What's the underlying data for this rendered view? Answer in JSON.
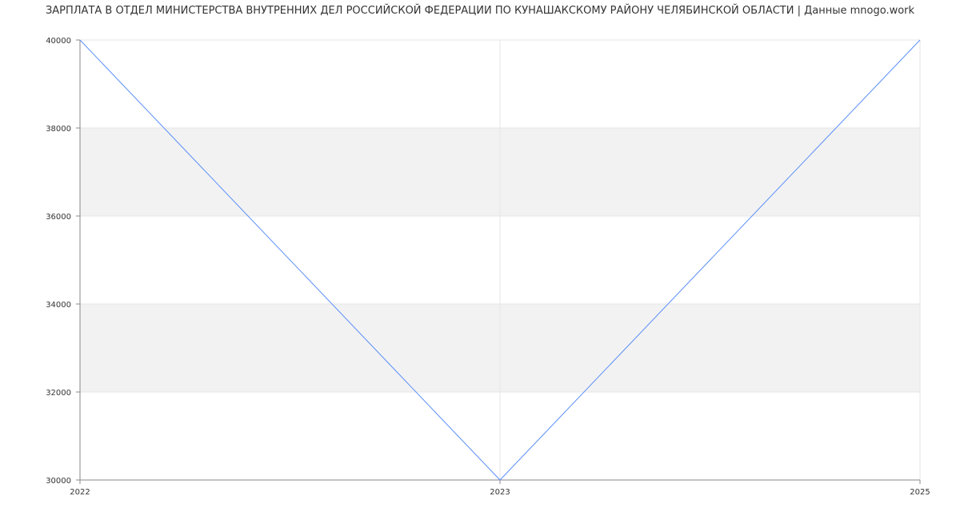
{
  "title": "ЗАРПЛАТА В ОТДЕЛ МИНИСТЕРСТВА ВНУТРЕННИХ ДЕЛ РОССИЙСКОЙ ФЕДЕРАЦИИ ПО КУНАШАКСКОМУ РАЙОНУ ЧЕЛЯБИНСКОЙ ОБЛАСТИ | Данные mnogo.work",
  "chart_data": {
    "type": "line",
    "title": "ЗАРПЛАТА В ОТДЕЛ МИНИСТЕРСТВА ВНУТРЕННИХ ДЕЛ РОССИЙСКОЙ ФЕДЕРАЦИИ ПО КУНАШАКСКОМУ РАЙОНУ ЧЕЛЯБИНСКОЙ ОБЛАСТИ | Данные mnogo.work",
    "x": [
      2022,
      2023,
      2025
    ],
    "xticks": [
      "2022",
      "2023",
      "2025"
    ],
    "xlim": [
      2022,
      2024
    ],
    "series": [
      {
        "values": [
          40000,
          30000,
          40000
        ],
        "color": "#5b8ff9"
      }
    ],
    "yticks": [
      "30000",
      "32000",
      "34000",
      "36000",
      "38000",
      "40000"
    ],
    "ylim": [
      30000,
      40000
    ],
    "grid": true,
    "band_color": "#f2f2f2"
  }
}
